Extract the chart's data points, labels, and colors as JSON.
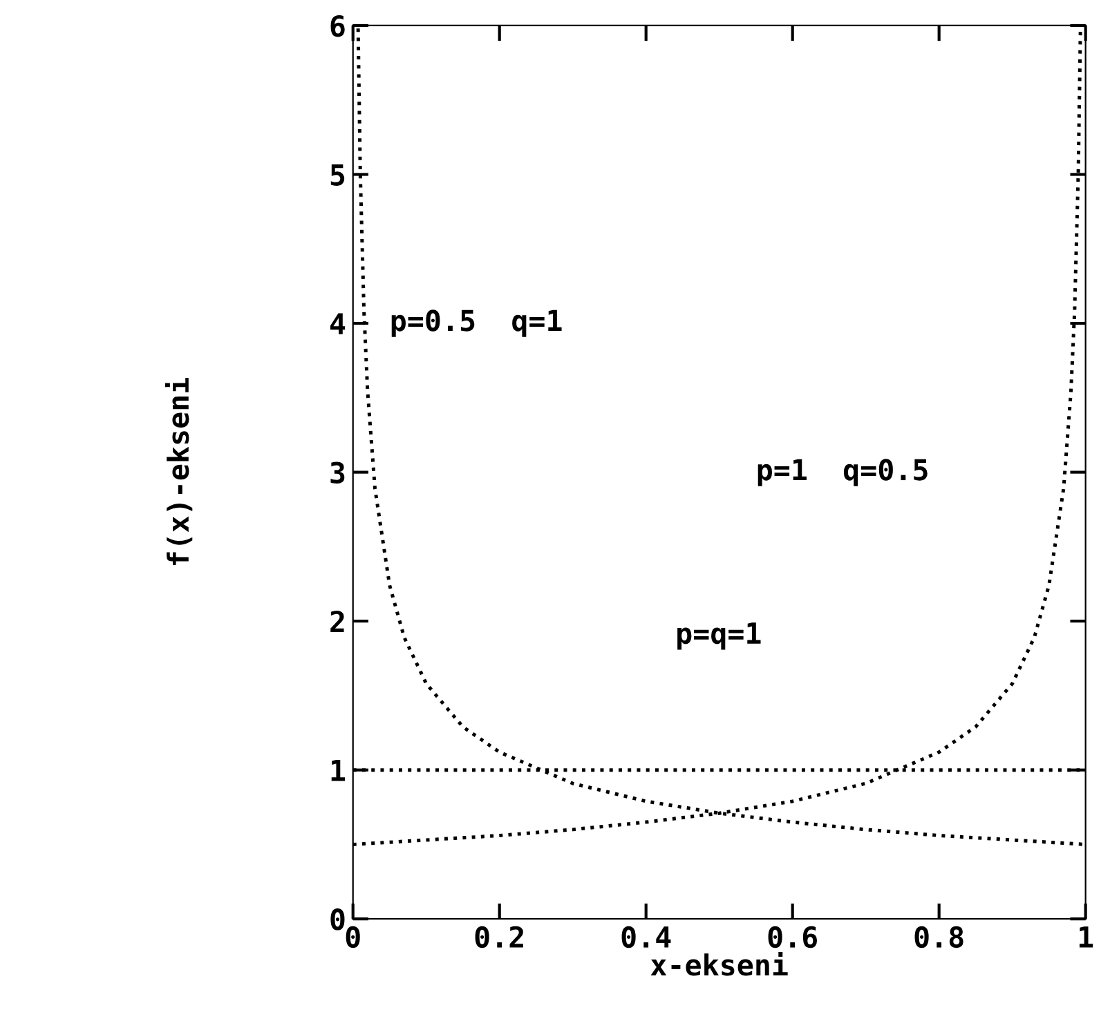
{
  "chart_data": {
    "type": "line",
    "xlabel": "x-ekseni",
    "ylabel": "f(x)-ekseni",
    "xlim": [
      0,
      1
    ],
    "ylim": [
      0,
      6
    ],
    "xticks": [
      0,
      {
        "value": 0.2,
        "label": "0.2"
      },
      {
        "value": 0.4,
        "label": "0.4"
      },
      {
        "value": 0.6,
        "label": "0.6"
      },
      {
        "value": 0.8,
        "label": "0.8"
      },
      1
    ],
    "yticks": [
      0,
      1,
      2,
      3,
      4,
      5,
      6
    ],
    "grid": false,
    "legend": false,
    "marker": "none",
    "line_style": "dotted",
    "series": [
      {
        "color": "#000000",
        "x": [
          0.007,
          0.01,
          0.015,
          0.02,
          0.03,
          0.05,
          0.07,
          0.1,
          0.15,
          0.2,
          0.3,
          0.4,
          0.5,
          0.6,
          0.7,
          0.8,
          0.9,
          1
        ],
        "values": [
          5.98,
          5.0,
          4.08,
          3.54,
          2.89,
          2.24,
          1.89,
          1.58,
          1.29,
          1.12,
          0.91,
          0.79,
          0.71,
          0.65,
          0.6,
          0.56,
          0.53,
          0.5
        ]
      },
      {
        "color": "#000000",
        "x": [
          0,
          0.1,
          0.2,
          0.3,
          0.4,
          0.5,
          0.6,
          0.7,
          0.8,
          0.85,
          0.9,
          0.93,
          0.95,
          0.97,
          0.98,
          0.985,
          0.99,
          0.993
        ],
        "values": [
          0.5,
          0.53,
          0.56,
          0.6,
          0.65,
          0.71,
          0.79,
          0.91,
          1.12,
          1.29,
          1.58,
          1.89,
          2.24,
          2.89,
          3.54,
          4.08,
          5.0,
          5.98
        ]
      },
      {
        "color": "#000000",
        "x": [
          0,
          1
        ],
        "values": [
          1,
          1
        ]
      }
    ],
    "annotations": [
      "p=0.5  q=1",
      "p=1  q=0.5",
      "p=q=1"
    ]
  }
}
